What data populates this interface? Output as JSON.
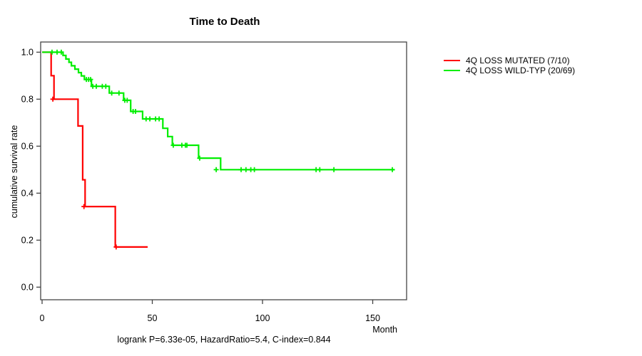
{
  "chart_data": {
    "type": "line",
    "subtype": "kaplan-meier-step",
    "title": "Time to Death",
    "xlabel": "Month",
    "ylabel": "cumulative survival rate",
    "footer": "logrank P=6.33e-05, HazardRatio=5.4, C-index=0.844",
    "x_ticks": [
      0,
      50,
      100,
      150
    ],
    "y_ticks": [
      "0.0",
      "0.2",
      "0.4",
      "0.6",
      "0.8",
      "1.0"
    ],
    "xlim": [
      0,
      165
    ],
    "ylim": [
      0,
      1
    ],
    "grid": false,
    "legend_position": "right",
    "axis_color": "#444444",
    "series": [
      {
        "name": "4Q LOSS MUTATED (7/10)",
        "color": "#ff0000",
        "steps": [
          [
            0,
            1.0
          ],
          [
            4.1,
            0.9
          ],
          [
            5.4,
            0.8
          ],
          [
            16.3,
            0.686
          ],
          [
            18.4,
            0.457
          ],
          [
            19.5,
            0.343
          ],
          [
            33.2,
            0.171
          ]
        ],
        "end_month": 47.9,
        "censor_marks": [
          [
            4.9,
            0.8
          ],
          [
            19.0,
            0.343
          ],
          [
            33.6,
            0.171
          ]
        ]
      },
      {
        "name": "4Q LOSS WILD-TYP (20/69)",
        "color": "#00ee00",
        "steps": [
          [
            0,
            1.0
          ],
          [
            9.5,
            0.986
          ],
          [
            10.8,
            0.971
          ],
          [
            12.2,
            0.957
          ],
          [
            13.3,
            0.942
          ],
          [
            14.9,
            0.928
          ],
          [
            16.5,
            0.913
          ],
          [
            17.8,
            0.899
          ],
          [
            19.2,
            0.884
          ],
          [
            22.4,
            0.855
          ],
          [
            30.5,
            0.826
          ],
          [
            37.0,
            0.795
          ],
          [
            40.2,
            0.748
          ],
          [
            45.6,
            0.716
          ],
          [
            54.8,
            0.676
          ],
          [
            57.0,
            0.641
          ],
          [
            59.1,
            0.604
          ],
          [
            71.0,
            0.549
          ],
          [
            81.0,
            0.5
          ]
        ],
        "end_month": 160,
        "censor_marks": [
          [
            4.5,
            1.0
          ],
          [
            6.8,
            1.0
          ],
          [
            8.7,
            1.0
          ],
          [
            20.1,
            0.884
          ],
          [
            21.1,
            0.884
          ],
          [
            22.0,
            0.884
          ],
          [
            23.0,
            0.855
          ],
          [
            24.6,
            0.855
          ],
          [
            27.3,
            0.855
          ],
          [
            28.9,
            0.855
          ],
          [
            31.6,
            0.826
          ],
          [
            34.9,
            0.826
          ],
          [
            37.5,
            0.795
          ],
          [
            38.6,
            0.795
          ],
          [
            41.3,
            0.748
          ],
          [
            42.4,
            0.748
          ],
          [
            47.2,
            0.716
          ],
          [
            48.9,
            0.716
          ],
          [
            51.5,
            0.716
          ],
          [
            53.1,
            0.716
          ],
          [
            59.5,
            0.604
          ],
          [
            63.4,
            0.604
          ],
          [
            65.0,
            0.604
          ],
          [
            65.7,
            0.604
          ],
          [
            71.5,
            0.549
          ],
          [
            79.0,
            0.5
          ],
          [
            90.3,
            0.5
          ],
          [
            92.5,
            0.5
          ],
          [
            94.7,
            0.5
          ],
          [
            96.3,
            0.5
          ],
          [
            124.3,
            0.5
          ],
          [
            126.0,
            0.5
          ],
          [
            132.4,
            0.5
          ],
          [
            158.9,
            0.5
          ]
        ]
      }
    ]
  }
}
